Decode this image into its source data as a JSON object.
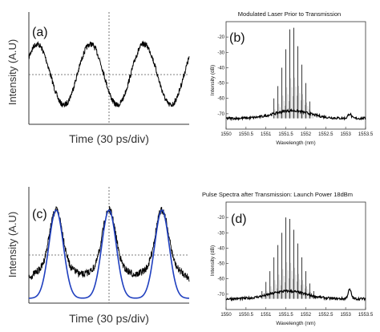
{
  "chart_data": [
    {
      "id": "a",
      "type": "line",
      "panel_label": "(a)",
      "xlabel": "Time (30 ps/div)",
      "ylabel": "Intensity (A.U)",
      "grid": false,
      "series": [
        {
          "kind": "sinusoid",
          "periods": 3,
          "color": "#000000",
          "noise": true
        }
      ]
    },
    {
      "id": "b",
      "type": "bar",
      "panel_label": "(b)",
      "title": "Modulated Laser Prior to Transmission",
      "xlabel": "Wavelength (nm)",
      "ylabel": "Intensity (dB)",
      "xlim": [
        1550,
        1553.5
      ],
      "ylim": [
        -80,
        -10
      ],
      "xticks": [
        "1550",
        "1550.5",
        "1551",
        "1551.5",
        "1552",
        "1552.5",
        "1553",
        "1553.5"
      ],
      "yticks": [
        "-20",
        "-30",
        "-40",
        "-50",
        "-60",
        "-70"
      ],
      "series": [
        {
          "name": "",
          "x": [
            1551.2,
            1551.3,
            1551.4,
            1551.5,
            1551.6,
            1551.7,
            1551.8,
            1551.9,
            1552.0,
            1552.1
          ],
          "values": [
            -60,
            -52,
            -40,
            -28,
            -15,
            -14,
            -26,
            -38,
            -50,
            -62
          ]
        }
      ],
      "noise_floor": -73,
      "side_peak": {
        "x": 1553.1,
        "value": -70
      }
    },
    {
      "id": "c",
      "type": "line",
      "panel_label": "(c)",
      "xlabel": "Time (30 ps/div)",
      "ylabel": "Intensity (A.U)",
      "grid": false,
      "series": [
        {
          "kind": "pulses",
          "periods": 3,
          "color": "#1f3fbf",
          "noise": false
        },
        {
          "kind": "pulses-with-wings",
          "periods": 3,
          "color": "#000000",
          "noise": true
        }
      ]
    },
    {
      "id": "d",
      "type": "bar",
      "panel_label": "(d)",
      "title": "Pulse Spectra after Transmission: Launch Power 18dBm",
      "xlabel": "Wavelength (nm)",
      "ylabel": "Intensity (dB)",
      "xlim": [
        1550,
        1553.5
      ],
      "ylim": [
        -80,
        -10
      ],
      "xticks": [
        "1550",
        "1550.5",
        "1551",
        "1551.5",
        "1552",
        "1552.5",
        "1553",
        "1553.5"
      ],
      "yticks": [
        "-20",
        "-30",
        "-40",
        "-50",
        "-60",
        "-70"
      ],
      "series": [
        {
          "name": "",
          "x": [
            1550.9,
            1551.0,
            1551.1,
            1551.2,
            1551.3,
            1551.4,
            1551.5,
            1551.6,
            1551.7,
            1551.8,
            1551.9,
            1552.0,
            1552.1,
            1552.2
          ],
          "values": [
            -68,
            -62,
            -55,
            -46,
            -38,
            -30,
            -20,
            -21,
            -28,
            -37,
            -46,
            -55,
            -63,
            -68
          ]
        }
      ],
      "noise_floor": -73,
      "side_peak": {
        "x": 1553.1,
        "value": -67
      }
    }
  ]
}
